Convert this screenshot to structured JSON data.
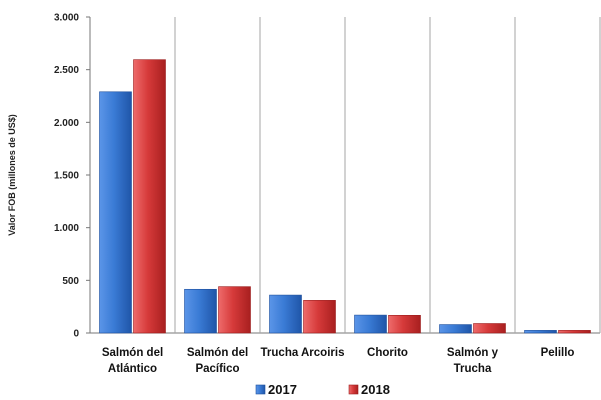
{
  "chart_data": {
    "type": "bar",
    "categories": [
      [
        "Salmón del",
        "Atlántico"
      ],
      [
        "Salmón del",
        "Pacífico"
      ],
      [
        "Trucha Arcoiris"
      ],
      [
        "Chorito"
      ],
      [
        "Salmón y",
        "Trucha"
      ],
      [
        "Pelillo"
      ]
    ],
    "series": [
      {
        "name": "2017",
        "values": [
          2290,
          415,
          360,
          170,
          80,
          25
        ],
        "color": "#3a7bd5"
      },
      {
        "name": "2018",
        "values": [
          2595,
          440,
          310,
          168,
          90,
          25
        ],
        "color": "#d63a3a"
      }
    ],
    "ylabel": "Valor FOB (millones de US$)",
    "ylim": [
      0,
      3000
    ],
    "yticks": [
      0,
      500,
      1000,
      1500,
      2000,
      2500,
      3000
    ],
    "ytick_labels": [
      "0",
      "500",
      "1.000",
      "1.500",
      "2.000",
      "2.500",
      "3.000"
    ],
    "grid": "vertical separators between categories",
    "legend_position": "bottom"
  }
}
